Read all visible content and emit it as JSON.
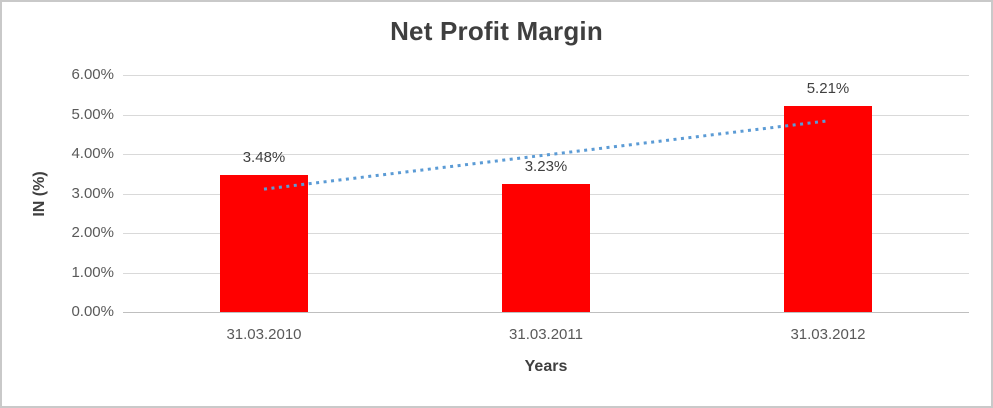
{
  "chart_data": {
    "type": "bar",
    "title": "Net Profit Margin",
    "xlabel": "Years",
    "ylabel": "IN (%)",
    "categories": [
      "31.03.2010",
      "31.03.2011",
      "31.03.2012"
    ],
    "values": [
      3.48,
      3.23,
      5.21
    ],
    "data_labels": [
      "3.48%",
      "3.23%",
      "5.21%"
    ],
    "ylim": [
      0,
      6
    ],
    "ytick_step": 1,
    "ytick_labels": [
      "0.00%",
      "1.00%",
      "2.00%",
      "3.00%",
      "4.00%",
      "5.00%",
      "6.00%"
    ],
    "grid": true,
    "legend": "none",
    "bar_color": "#ff0000",
    "trendline": {
      "type": "linear",
      "style": "dotted",
      "color": "#5b9bd5",
      "start_value": 3.11,
      "end_value": 4.84
    },
    "text_colors": {
      "title": "#3f3f3f",
      "ticks": "#595959",
      "data_labels": "#404040"
    }
  }
}
